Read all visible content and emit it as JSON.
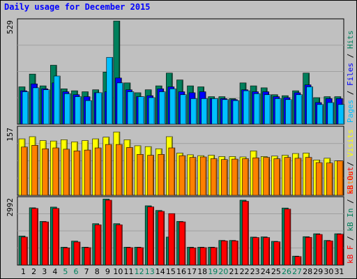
{
  "title": "Daily usage for December 2015",
  "colors": {
    "hits": "#00805c",
    "files": "#0000ff",
    "pages": "#00c0ff",
    "visits": "#ffff00",
    "sites": "#ff8000",
    "kbin": "#00805c",
    "kbout": "#ff0000",
    "weekend": "#00805c",
    "weekday": "#000000"
  },
  "chart_data": [
    {
      "type": "bar",
      "title": "Daily usage for December 2015",
      "panel": "hits-files-pages",
      "ymax_label": "529",
      "ylim": [
        0,
        529
      ],
      "x": [
        "1",
        "2",
        "3",
        "4",
        "5",
        "6",
        "7",
        "8",
        "9",
        "10",
        "11",
        "12",
        "13",
        "14",
        "15",
        "16",
        "17",
        "18",
        "19",
        "20",
        "21",
        "22",
        "23",
        "24",
        "25",
        "26",
        "27",
        "28",
        "29",
        "30",
        "31"
      ],
      "legend_text": [
        {
          "key": "pages",
          "text": "Pages"
        },
        {
          "key": "sep",
          "text": " / "
        },
        {
          "key": "files",
          "text": "Files"
        },
        {
          "key": "sep",
          "text": " / "
        },
        {
          "key": "hits",
          "text": "Hits"
        }
      ],
      "series": [
        {
          "name": "Hits",
          "key": "hits",
          "values": [
            190,
            255,
            195,
            300,
            180,
            170,
            165,
            175,
            265,
            525,
            210,
            160,
            175,
            195,
            260,
            225,
            195,
            190,
            140,
            140,
            130,
            210,
            195,
            185,
            150,
            145,
            170,
            260,
            135,
            140,
            140
          ]
        },
        {
          "name": "Files",
          "key": "files",
          "values": [
            170,
            205,
            180,
            210,
            165,
            150,
            140,
            160,
            165,
            235,
            175,
            140,
            145,
            180,
            190,
            165,
            160,
            165,
            130,
            130,
            125,
            175,
            165,
            165,
            140,
            135,
            160,
            200,
            110,
            130,
            130
          ]
        },
        {
          "name": "Pages",
          "key": "pages",
          "values": [
            165,
            185,
            175,
            245,
            155,
            140,
            120,
            160,
            340,
            210,
            165,
            140,
            135,
            165,
            180,
            150,
            130,
            130,
            130,
            125,
            120,
            170,
            155,
            150,
            130,
            125,
            150,
            190,
            100,
            110,
            100
          ]
        }
      ]
    },
    {
      "type": "bar",
      "panel": "visits-sites",
      "ymax_label": "157",
      "ylim": [
        0,
        157
      ],
      "x": [
        "1",
        "2",
        "3",
        "4",
        "5",
        "6",
        "7",
        "8",
        "9",
        "10",
        "11",
        "12",
        "13",
        "14",
        "15",
        "16",
        "17",
        "18",
        "19",
        "20",
        "21",
        "22",
        "23",
        "24",
        "25",
        "26",
        "27",
        "28",
        "29",
        "30",
        "31"
      ],
      "legend_text": [
        {
          "key": "sites",
          "text": "Sites"
        },
        {
          "key": "sep",
          "text": " / "
        },
        {
          "key": "visits",
          "text": "Visits"
        }
      ],
      "series": [
        {
          "name": "Visits",
          "key": "visits",
          "values": [
            131,
            136,
            127,
            126,
            129,
            124,
            127,
            131,
            135,
            147,
            129,
            115,
            113,
            108,
            136,
            98,
            94,
            92,
            93,
            90,
            90,
            89,
            103,
            90,
            91,
            93,
            97,
            98,
            82,
            86,
            80
          ]
        },
        {
          "name": "Sites",
          "key": "sites",
          "values": [
            112,
            116,
            108,
            110,
            107,
            103,
            105,
            110,
            118,
            118,
            111,
            95,
            93,
            95,
            110,
            92,
            88,
            89,
            85,
            83,
            84,
            85,
            87,
            88,
            85,
            88,
            86,
            88,
            76,
            75,
            80
          ]
        }
      ]
    },
    {
      "type": "bar",
      "panel": "kbin-kbout",
      "ymax_label": "2992",
      "ylim": [
        0,
        2992
      ],
      "x": [
        "1",
        "2",
        "3",
        "4",
        "5",
        "6",
        "7",
        "8",
        "9",
        "10",
        "11",
        "12",
        "13",
        "14",
        "15",
        "16",
        "17",
        "18",
        "19",
        "20",
        "21",
        "22",
        "23",
        "24",
        "25",
        "26",
        "27",
        "28",
        "29",
        "30",
        "31"
      ],
      "legend_text": [
        {
          "key": "kbout",
          "text": "kB F"
        },
        {
          "key": "sep",
          "text": " / "
        },
        {
          "key": "kbin",
          "text": "kB In"
        },
        {
          "key": "sep",
          "text": " / "
        },
        {
          "key": "kbout",
          "text": "kB Out"
        }
      ],
      "series": [
        {
          "name": "kB In",
          "key": "kbin",
          "values": [
            1300,
            2560,
            1950,
            2590,
            800,
            1070,
            800,
            1850,
            2950,
            1850,
            800,
            800,
            2650,
            2440,
            1250,
            1950,
            800,
            800,
            800,
            1100,
            1100,
            2900,
            1250,
            1260,
            1060,
            2550,
            400,
            1270,
            1400,
            1100,
            1400
          ]
        },
        {
          "name": "kB Out",
          "key": "kbout",
          "values": [
            1250,
            2530,
            1930,
            2530,
            770,
            1030,
            780,
            1800,
            2900,
            1800,
            780,
            780,
            2600,
            2400,
            2300,
            1930,
            770,
            780,
            780,
            1080,
            1080,
            2850,
            1230,
            1230,
            1040,
            2500,
            380,
            1240,
            1370,
            1080,
            1380
          ]
        }
      ]
    }
  ]
}
